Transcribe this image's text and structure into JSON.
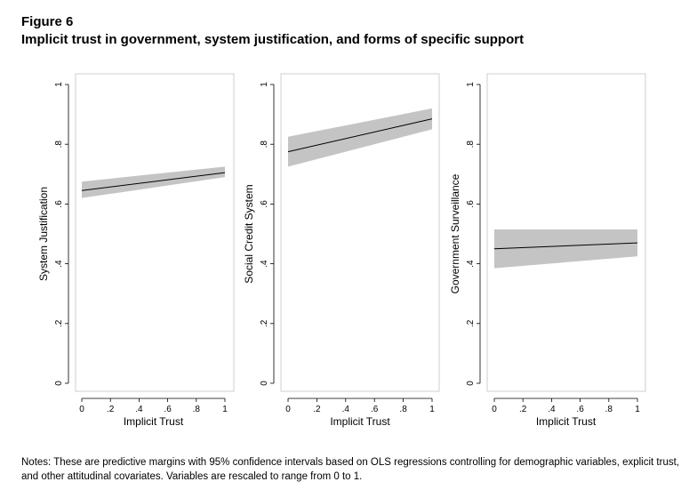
{
  "figure_label": "Figure 6",
  "figure_title": "Implicit trust in government, system justification, and forms of specific support",
  "notes": "Notes: These are predictive margins with 95% confidence intervals based on OLS regressions controlling for demographic variables, explicit trust, and other attitudinal covariates. Variables are rescaled to range from 0 to 1.",
  "chart_data": [
    {
      "type": "line",
      "xlabel": "Implicit Trust",
      "ylabel": "System Justification",
      "xlim": [
        0,
        1
      ],
      "ylim": [
        0,
        1
      ],
      "x_ticks": [
        "0",
        ".2",
        ".4",
        ".6",
        ".8",
        "1"
      ],
      "y_ticks": [
        "0",
        ".2",
        ".4",
        ".6",
        ".8",
        "1"
      ],
      "x": [
        0,
        1
      ],
      "y": [
        0.645,
        0.705
      ],
      "ci_lower": [
        0.62,
        0.69
      ],
      "ci_upper": [
        0.675,
        0.725
      ],
      "grid": false
    },
    {
      "type": "line",
      "xlabel": "Implicit Trust",
      "ylabel": "Social Credit System",
      "xlim": [
        0,
        1
      ],
      "ylim": [
        0,
        1
      ],
      "x_ticks": [
        "0",
        ".2",
        ".4",
        ".6",
        ".8",
        "1"
      ],
      "y_ticks": [
        "0",
        ".2",
        ".4",
        ".6",
        ".8",
        "1"
      ],
      "x": [
        0,
        1
      ],
      "y": [
        0.775,
        0.885
      ],
      "ci_lower": [
        0.725,
        0.85
      ],
      "ci_upper": [
        0.825,
        0.92
      ],
      "grid": false
    },
    {
      "type": "line",
      "xlabel": "Implicit Trust",
      "ylabel": "Government Surveillance",
      "xlim": [
        0,
        1
      ],
      "ylim": [
        0,
        1
      ],
      "x_ticks": [
        "0",
        ".2",
        ".4",
        ".6",
        ".8",
        "1"
      ],
      "y_ticks": [
        "0",
        ".2",
        ".4",
        ".6",
        ".8",
        "1"
      ],
      "x": [
        0,
        1
      ],
      "y": [
        0.45,
        0.47
      ],
      "ci_lower": [
        0.385,
        0.425
      ],
      "ci_upper": [
        0.515,
        0.515
      ],
      "grid": false
    }
  ],
  "colors": {
    "ci_band": "#c4c4c4",
    "line": "#000000",
    "frame": "#cfcfcf",
    "axis": "#000000"
  }
}
